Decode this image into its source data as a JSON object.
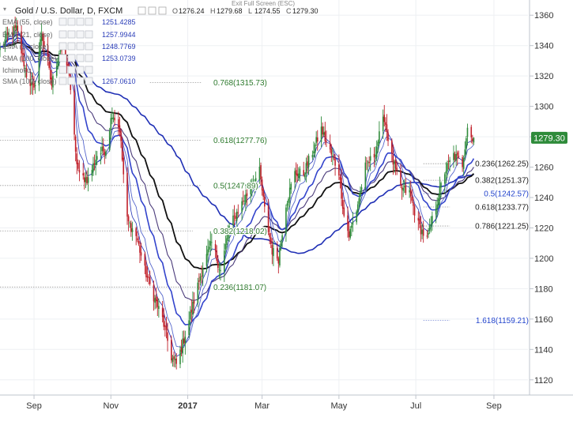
{
  "header": {
    "symbol_title": "Gold / U.S. Dollar, D, FXCM",
    "ohlc": [
      {
        "k": "O",
        "v": "1276.24"
      },
      {
        "k": "H",
        "v": "1279.68"
      },
      {
        "k": "L",
        "v": "1274.55"
      },
      {
        "k": "C",
        "v": "1279.30"
      }
    ],
    "exit_fullscreen": "Exit Full Screen (ESC)"
  },
  "legend": [
    {
      "label": "EMA (55, close)",
      "value": "1251.4285"
    },
    {
      "label": "EMA (21, close)",
      "value": "1257.9944"
    },
    {
      "label": "EMA (5, close)",
      "value": "1248.7769"
    },
    {
      "label": "SMA (100, close)",
      "value": "1253.0739"
    },
    {
      "label": "Ichimoku",
      "value": ""
    },
    {
      "label": "SMA (100, close)",
      "value": "1267.0610"
    }
  ],
  "colors": {
    "bull": "#2e8b3a",
    "bear": "#c0202a",
    "ema_dark_blue": "#1f2fb5",
    "ema_mid_blue": "#3344cc",
    "ema_thin": "#5566cc",
    "sma_black": "#111111",
    "purple": "#4a3a7a",
    "fib_label": "#2e7a2e",
    "ext_label": "#2244cc",
    "price_tag": "#2e8b3a"
  },
  "chart_data": {
    "type": "candlestick",
    "title": "Gold / U.S. Dollar, D, FXCM",
    "ylim": [
      1110,
      1370
    ],
    "x_ticks": [
      "Sep",
      "Nov",
      "2017",
      "Mar",
      "May",
      "Jul",
      "Sep"
    ],
    "x_tick_dates": [
      "2016-09-01",
      "2016-11-01",
      "2017-01-01",
      "2017-03-01",
      "2017-05-01",
      "2017-07-01",
      "2017-09-01"
    ],
    "x_range": [
      "2016-08-05",
      "2017-09-28"
    ],
    "y_ticks": [
      1360,
      1340,
      1320,
      1300,
      1280,
      1260,
      1240,
      1220,
      1200,
      1180,
      1160,
      1140,
      1120
    ],
    "last_price": "1279.30",
    "fib_levels": [
      {
        "label": "0.768(1315.73)",
        "y": 1315.73,
        "start": "2016-12-02",
        "end": "2017-01-12",
        "color": "green"
      },
      {
        "label": "0.618(1277.76)",
        "y": 1277.76,
        "start": "2016-08-05",
        "end": "2017-01-12",
        "color": "green"
      },
      {
        "label": "0.5(1247.89)",
        "y": 1247.89,
        "start": "2016-08-05",
        "end": "2017-01-12",
        "color": "green"
      },
      {
        "label": "0.382(1218.02)",
        "y": 1218.02,
        "start": "2016-08-05",
        "end": "2017-01-05",
        "color": "green"
      },
      {
        "label": "0.236(1181.07)",
        "y": 1181.07,
        "start": "2016-08-05",
        "end": "2017-01-12",
        "color": "green"
      },
      {
        "label": "0.236(1262.25)",
        "y": 1262.25,
        "start": "2017-07-07",
        "end": "2017-07-28",
        "color": "black"
      },
      {
        "label": "0.382(1251.37)",
        "y": 1251.37,
        "start": "2017-07-07",
        "end": "2017-07-28",
        "color": "black"
      },
      {
        "label": "0.5(1242.57)",
        "y": 1242.57,
        "start": "2017-07-07",
        "end": "2017-07-28",
        "color": "blue"
      },
      {
        "label": "0.618(1233.77)",
        "y": 1233.77,
        "start": "2017-07-07",
        "end": "2017-07-28",
        "color": "black"
      },
      {
        "label": "0.786(1221.25)",
        "y": 1221.25,
        "start": "2017-07-07",
        "end": "2017-07-28",
        "color": "black"
      },
      {
        "label": "1.618(1159.21)",
        "y": 1159.21,
        "start": "2017-07-07",
        "end": "2017-07-28",
        "color": "blue"
      }
    ],
    "anchors": [
      [
        "2016-08-05",
        1338
      ],
      [
        "2016-08-12",
        1347
      ],
      [
        "2016-08-18",
        1351
      ],
      [
        "2016-08-26",
        1321
      ],
      [
        "2016-09-01",
        1310
      ],
      [
        "2016-09-07",
        1349
      ],
      [
        "2016-09-15",
        1314
      ],
      [
        "2016-09-22",
        1340
      ],
      [
        "2016-09-29",
        1322
      ],
      [
        "2016-10-04",
        1268
      ],
      [
        "2016-10-07",
        1254
      ],
      [
        "2016-10-14",
        1252
      ],
      [
        "2016-10-21",
        1268
      ],
      [
        "2016-10-28",
        1272
      ],
      [
        "2016-11-02",
        1296
      ],
      [
        "2016-11-08",
        1285
      ],
      [
        "2016-11-14",
        1225
      ],
      [
        "2016-11-21",
        1215
      ],
      [
        "2016-11-28",
        1192
      ],
      [
        "2016-12-05",
        1175
      ],
      [
        "2016-12-12",
        1160
      ],
      [
        "2016-12-19",
        1135
      ],
      [
        "2016-12-23",
        1130
      ],
      [
        "2016-12-29",
        1147
      ],
      [
        "2017-01-06",
        1172
      ],
      [
        "2017-01-13",
        1195
      ],
      [
        "2017-01-20",
        1210
      ],
      [
        "2017-01-27",
        1192
      ],
      [
        "2017-02-03",
        1220
      ],
      [
        "2017-02-10",
        1232
      ],
      [
        "2017-02-17",
        1242
      ],
      [
        "2017-02-27",
        1257
      ],
      [
        "2017-03-03",
        1232
      ],
      [
        "2017-03-09",
        1205
      ],
      [
        "2017-03-14",
        1200
      ],
      [
        "2017-03-20",
        1236
      ],
      [
        "2017-03-27",
        1256
      ],
      [
        "2017-04-03",
        1256
      ],
      [
        "2017-04-10",
        1270
      ],
      [
        "2017-04-17",
        1285
      ],
      [
        "2017-04-24",
        1270
      ],
      [
        "2017-05-01",
        1257
      ],
      [
        "2017-05-05",
        1228
      ],
      [
        "2017-05-09",
        1215
      ],
      [
        "2017-05-15",
        1232
      ],
      [
        "2017-05-22",
        1260
      ],
      [
        "2017-05-29",
        1268
      ],
      [
        "2017-06-06",
        1293
      ],
      [
        "2017-06-12",
        1266
      ],
      [
        "2017-06-19",
        1246
      ],
      [
        "2017-06-26",
        1243
      ],
      [
        "2017-07-03",
        1222
      ],
      [
        "2017-07-10",
        1212
      ],
      [
        "2017-07-17",
        1235
      ],
      [
        "2017-07-24",
        1257
      ],
      [
        "2017-07-31",
        1268
      ],
      [
        "2017-08-07",
        1262
      ],
      [
        "2017-08-11",
        1287
      ],
      [
        "2017-08-16",
        1275
      ]
    ]
  }
}
